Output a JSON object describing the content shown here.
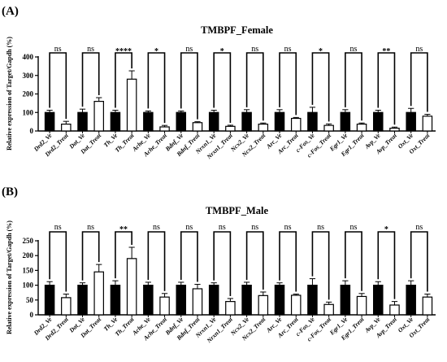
{
  "chart_data": [
    {
      "type": "bar",
      "panel_label": "(A)",
      "title": "TMBPF_Female",
      "ylabel": "Relative expression of Target/Gapdh (%)",
      "ylim": [
        0,
        400
      ],
      "yticks": [
        0,
        100,
        200,
        300,
        400
      ],
      "grid": false,
      "categories": [
        "Drd2_Ve",
        "Drd2_Treat",
        "Dat_Ve",
        "Dat_Treat",
        "Th_Ve",
        "Th_Treat",
        "Ache_Ve",
        "Ache_Treat",
        "Bdnf_Ve",
        "Bdnf_Treat",
        "Nrxn1_Ve",
        "Nrxn1_Treat",
        "Ncx2_Ve",
        "Ncx2_Treat",
        "Arc_Ve",
        "Arc_Treat",
        "c-Fos_Ve",
        "c-Fos_Treat",
        "Egr1_Ve",
        "Egr1_Treat",
        "Avp_Ve",
        "Avp_Treat",
        "Oxt_Ve",
        "Oxt_Treat"
      ],
      "values": [
        100,
        37,
        100,
        160,
        100,
        280,
        100,
        22,
        100,
        45,
        100,
        25,
        100,
        37,
        100,
        68,
        100,
        30,
        100,
        37,
        100,
        15,
        100,
        80
      ],
      "errors": [
        12,
        15,
        18,
        20,
        12,
        45,
        8,
        8,
        8,
        5,
        12,
        6,
        15,
        6,
        15,
        5,
        28,
        8,
        15,
        6,
        12,
        6,
        22,
        10
      ],
      "fills": [
        "black",
        "white",
        "black",
        "white",
        "black",
        "white",
        "black",
        "white",
        "black",
        "white",
        "black",
        "white",
        "black",
        "white",
        "black",
        "white",
        "black",
        "white",
        "black",
        "white",
        "black",
        "white",
        "black",
        "white"
      ],
      "significance": [
        "ns",
        "ns",
        "****",
        "*",
        "ns",
        "*",
        "ns",
        "ns",
        "*",
        "ns",
        "**",
        "ns"
      ]
    },
    {
      "type": "bar",
      "panel_label": "(B)",
      "title": "TMBPF_Male",
      "ylabel": "Relative expression of Target/Gapdh (%)",
      "ylim": [
        0,
        250
      ],
      "yticks": [
        0,
        50,
        100,
        150,
        200,
        250
      ],
      "grid": false,
      "categories": [
        "Drd2_Ve",
        "Drd2_Treat",
        "Dat_Ve",
        "Dat_Treat",
        "Th_Ve",
        "Th_Treat",
        "Ache_Ve",
        "Ache_Treat",
        "Bdnf_Ve",
        "Bdnf_Treat",
        "Nrxn1_Ve",
        "Nrxn1_Treat",
        "Ncx2_Ve",
        "Ncx2_Treat",
        "Arc_Ve",
        "Arc_Treat",
        "c-Fos_Ve",
        "c-Fos_Treat",
        "Egr1_Ve",
        "Egr1_Treat",
        "Avp_Ve",
        "Avp_Treat",
        "Oxt_Ve",
        "Oxt_Treat"
      ],
      "values": [
        100,
        58,
        100,
        145,
        100,
        190,
        100,
        60,
        100,
        88,
        100,
        45,
        100,
        65,
        100,
        66,
        100,
        35,
        100,
        62,
        100,
        33,
        100,
        60
      ],
      "errors": [
        12,
        12,
        8,
        25,
        15,
        38,
        10,
        12,
        10,
        15,
        8,
        10,
        10,
        12,
        8,
        4,
        22,
        8,
        15,
        10,
        12,
        12,
        15,
        10
      ],
      "fills": [
        "black",
        "white",
        "black",
        "white",
        "black",
        "white",
        "black",
        "white",
        "black",
        "white",
        "black",
        "white",
        "black",
        "white",
        "black",
        "white",
        "black",
        "white",
        "black",
        "white",
        "black",
        "white",
        "black",
        "white"
      ],
      "significance": [
        "ns",
        "ns",
        "**",
        "ns",
        "ns",
        "ns",
        "ns",
        "ns",
        "ns",
        "ns",
        "*",
        "ns"
      ]
    }
  ]
}
